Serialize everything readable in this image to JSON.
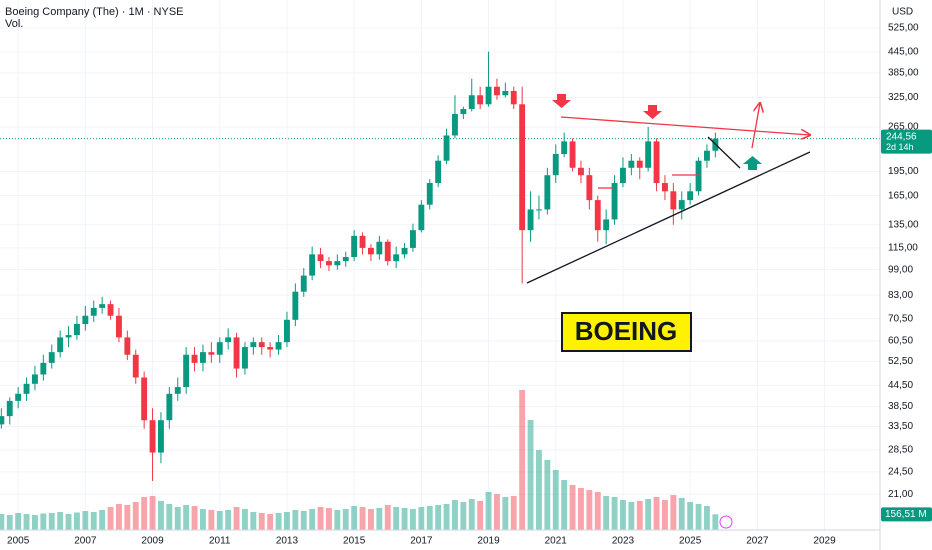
{
  "chart_data": {
    "type": "candlestick",
    "title": "Boeing Company (The) · 1M · NYSE",
    "volume_title": "Vol.",
    "currency": "USD",
    "annotation": "BOEING",
    "up_color": "#089981",
    "down_color": "#f23645",
    "log_scale": true,
    "xlim": [
      2004.46,
      2030.65
    ],
    "xticks": [
      2005,
      2007,
      2009,
      2011,
      2013,
      2015,
      2017,
      2019,
      2021,
      2023,
      2025,
      2027,
      2029
    ],
    "ylim": [
      16.4,
      637
    ],
    "yticks": [
      {
        "value": 21,
        "label": "21,00"
      },
      {
        "value": 24.5,
        "label": "24,50"
      },
      {
        "value": 28.5,
        "label": "28,50"
      },
      {
        "value": 33.5,
        "label": "33,50"
      },
      {
        "value": 38.5,
        "label": "38,50"
      },
      {
        "value": 44.5,
        "label": "44,50"
      },
      {
        "value": 52.5,
        "label": "52,50"
      },
      {
        "value": 60.5,
        "label": "60,50"
      },
      {
        "value": 70.5,
        "label": "70,50"
      },
      {
        "value": 83,
        "label": "83,00"
      },
      {
        "value": 99,
        "label": "99,00"
      },
      {
        "value": 115,
        "label": "115,00"
      },
      {
        "value": 135,
        "label": "135,00"
      },
      {
        "value": 165,
        "label": "165,00"
      },
      {
        "value": 195,
        "label": "195,00"
      },
      {
        "value": 265,
        "label": "265,00"
      },
      {
        "value": 325,
        "label": "325,00"
      },
      {
        "value": 385,
        "label": "385,00"
      },
      {
        "value": 445,
        "label": "445,00"
      },
      {
        "value": 525,
        "label": "525,00"
      }
    ],
    "price_label": {
      "value": 244.56,
      "label": "244,56"
    },
    "countdown": "2d 14h",
    "volume_label": {
      "value": 156.51,
      "label": "156,51 M"
    },
    "volume_ylim": [
      0,
      1800
    ],
    "x": [
      2004.5,
      2004.75,
      2005,
      2005.25,
      2005.5,
      2005.75,
      2006,
      2006.25,
      2006.5,
      2006.75,
      2007,
      2007.25,
      2007.5,
      2007.75,
      2008,
      2008.25,
      2008.5,
      2008.75,
      2009,
      2009.25,
      2009.5,
      2009.75,
      2010,
      2010.25,
      2010.5,
      2010.75,
      2011,
      2011.25,
      2011.5,
      2011.75,
      2012,
      2012.25,
      2012.5,
      2012.75,
      2013,
      2013.25,
      2013.5,
      2013.75,
      2014,
      2014.25,
      2014.5,
      2014.75,
      2015,
      2015.25,
      2015.5,
      2015.75,
      2016,
      2016.25,
      2016.5,
      2016.75,
      2017,
      2017.25,
      2017.5,
      2017.75,
      2018,
      2018.25,
      2018.5,
      2018.75,
      2019,
      2019.25,
      2019.5,
      2019.75,
      2020,
      2020.25,
      2020.5,
      2020.75,
      2021,
      2021.25,
      2021.5,
      2021.75,
      2022,
      2022.25,
      2022.5,
      2022.75,
      2023,
      2023.25,
      2023.5,
      2023.75,
      2024,
      2024.25,
      2024.5,
      2024.75,
      2025,
      2025.25,
      2025.5,
      2025.75
    ],
    "open": [
      34,
      36,
      40,
      42,
      45,
      48,
      52,
      56,
      62,
      63,
      68,
      72,
      76,
      78,
      72,
      62,
      55,
      47,
      35,
      28,
      35,
      42,
      44,
      55,
      52,
      56,
      55,
      60,
      62,
      50,
      58,
      60,
      58,
      57,
      60,
      70,
      85,
      95,
      110,
      105,
      102,
      105,
      108,
      125,
      115,
      110,
      120,
      105,
      110,
      115,
      130,
      155,
      180,
      210,
      250,
      290,
      300,
      330,
      310,
      350,
      330,
      340,
      310,
      130,
      150,
      150,
      190,
      220,
      240,
      200,
      190,
      160,
      130,
      140,
      180,
      200,
      210,
      200,
      240,
      180,
      170,
      150,
      160,
      170,
      210,
      225
    ],
    "high": [
      38,
      41,
      44,
      47,
      51,
      55,
      59,
      65,
      67,
      72,
      77,
      80,
      82,
      80,
      76,
      65,
      57,
      49,
      38,
      37,
      44,
      47,
      58,
      58,
      59,
      60,
      62,
      66,
      64,
      60,
      62,
      62,
      60,
      63,
      74,
      90,
      100,
      116,
      115,
      108,
      110,
      112,
      130,
      128,
      118,
      125,
      122,
      116,
      119,
      136,
      160,
      185,
      218,
      262,
      330,
      305,
      370,
      350,
      446,
      370,
      360,
      350,
      350,
      170,
      165,
      200,
      235,
      255,
      245,
      210,
      200,
      165,
      150,
      190,
      215,
      220,
      215,
      265,
      245,
      190,
      180,
      170,
      180,
      215,
      235,
      255
    ],
    "low": [
      33,
      34,
      38,
      40,
      43,
      46,
      50,
      54,
      58,
      61,
      65,
      69,
      73,
      70,
      60,
      53,
      45,
      33,
      23,
      26,
      33,
      40,
      42,
      49,
      49,
      52,
      52,
      57,
      47,
      48,
      55,
      55,
      54,
      55,
      58,
      67,
      82,
      92,
      100,
      98,
      99,
      101,
      105,
      110,
      105,
      106,
      102,
      100,
      107,
      112,
      128,
      150,
      175,
      205,
      245,
      280,
      295,
      300,
      305,
      320,
      325,
      300,
      90,
      120,
      140,
      145,
      180,
      215,
      195,
      180,
      150,
      120,
      118,
      135,
      175,
      190,
      185,
      195,
      170,
      160,
      135,
      140,
      155,
      165,
      200,
      215
    ],
    "close": [
      36,
      40,
      42,
      45,
      48,
      52,
      56,
      62,
      63,
      68,
      72,
      76,
      78,
      72,
      62,
      55,
      47,
      35,
      28,
      35,
      42,
      44,
      55,
      52,
      56,
      55,
      60,
      62,
      50,
      58,
      60,
      58,
      57,
      60,
      70,
      85,
      95,
      110,
      105,
      102,
      105,
      108,
      125,
      115,
      110,
      120,
      105,
      110,
      115,
      130,
      155,
      180,
      210,
      250,
      290,
      300,
      330,
      310,
      350,
      330,
      340,
      310,
      130,
      150,
      150,
      190,
      220,
      240,
      200,
      190,
      160,
      130,
      140,
      180,
      200,
      210,
      200,
      240,
      180,
      170,
      150,
      160,
      170,
      210,
      225,
      244.56
    ],
    "volume": [
      160,
      150,
      170,
      160,
      150,
      165,
      170,
      180,
      160,
      175,
      190,
      180,
      200,
      230,
      260,
      250,
      280,
      330,
      340,
      290,
      260,
      230,
      250,
      240,
      210,
      200,
      190,
      200,
      230,
      210,
      180,
      170,
      160,
      170,
      180,
      200,
      190,
      210,
      230,
      220,
      200,
      210,
      240,
      230,
      210,
      220,
      250,
      230,
      220,
      210,
      230,
      240,
      250,
      260,
      300,
      280,
      310,
      290,
      380,
      360,
      330,
      340,
      1400,
      1100,
      800,
      700,
      600,
      500,
      450,
      420,
      400,
      380,
      340,
      330,
      300,
      280,
      290,
      310,
      330,
      300,
      350,
      320,
      280,
      260,
      240,
      156.51
    ]
  }
}
